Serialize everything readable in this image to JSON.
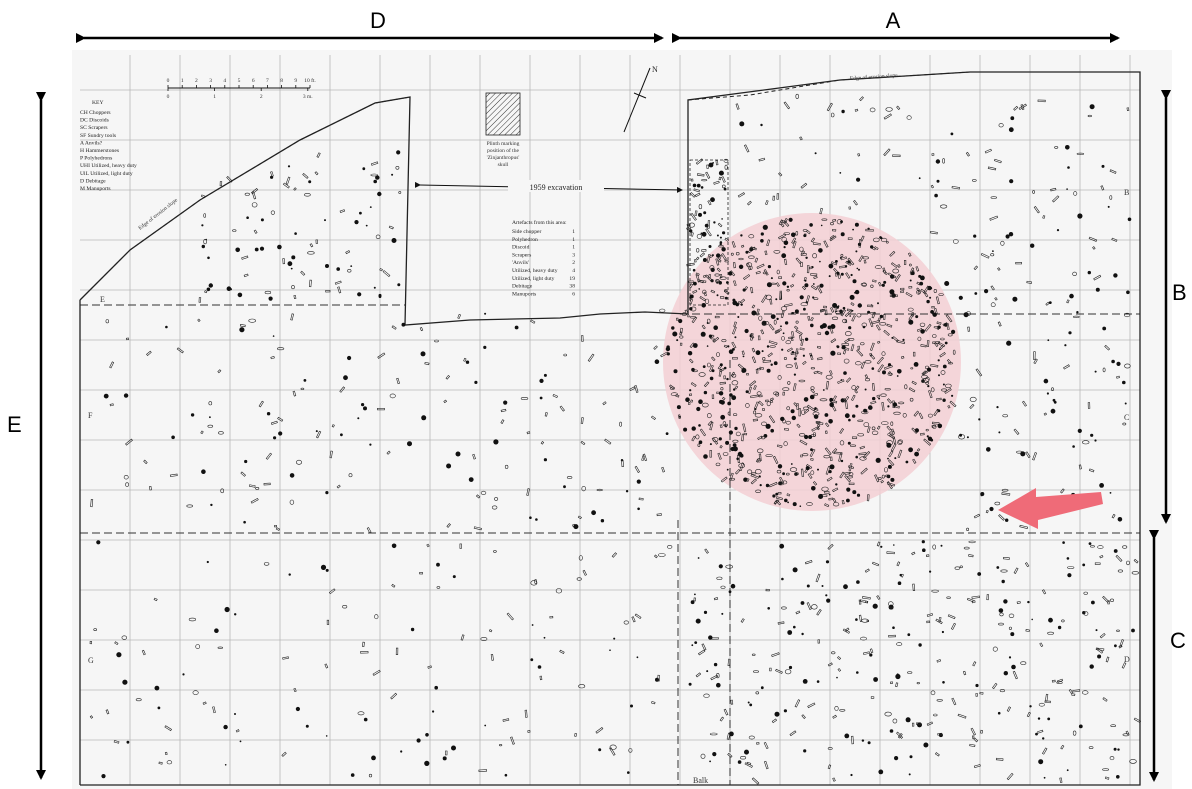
{
  "section_labels": {
    "d": "D",
    "a": "A",
    "b": "B",
    "c": "C",
    "e": "E"
  },
  "key": {
    "title": "KEY",
    "items": [
      "CH  Choppers",
      "DC  Discoids",
      "SC  Scrapers",
      "SF  Sundry tools",
      "A   Anvils?",
      "H   Hammerstones",
      "P   Polyhedrons",
      "UHI Utilized, heavy duty",
      "UlL Utilized, light duty",
      "D   Debitage",
      "M   Manuports"
    ]
  },
  "scale": {
    "ft_ticks": [
      "0",
      "1",
      "2",
      "3",
      "4",
      "5",
      "6",
      "7",
      "8",
      "9",
      "10 ft."
    ],
    "m_ticks": [
      "0",
      "1",
      "2",
      "3 m."
    ]
  },
  "plinth_caption": [
    "Plinth marking",
    "position of the",
    "'Zinjanthropus'",
    "skull"
  ],
  "north_label": "N",
  "excavation_label": "1959 excavation",
  "edge_label_top": "Edge of erosion slope",
  "edge_label_left": "Edge of erosion slope",
  "artefacts": {
    "title": "Artefacts from this area:",
    "rows": [
      {
        "name": "Side chopper",
        "count": "1"
      },
      {
        "name": "Polyhedron",
        "count": "1"
      },
      {
        "name": "Discoid",
        "count": "1"
      },
      {
        "name": "Scrapers",
        "count": "3"
      },
      {
        "name": "'Anvils'",
        "count": "2"
      },
      {
        "name": "Utilized, heavy duty",
        "count": "4"
      },
      {
        "name": "Utilized, light duty",
        "count": "19"
      },
      {
        "name": "Debitage",
        "count": "38"
      },
      {
        "name": "Manuports",
        "count": "6"
      }
    ]
  },
  "grid_letters": {
    "b": "B",
    "c": "C",
    "d": "D",
    "e": "E",
    "f": "F",
    "g": "G"
  },
  "balk_label": "Balk",
  "colors": {
    "highlight_fill": "#f3cfd3",
    "arrow": "#ef6b78",
    "grid": "#b8b8b8",
    "ink": "#111111"
  }
}
